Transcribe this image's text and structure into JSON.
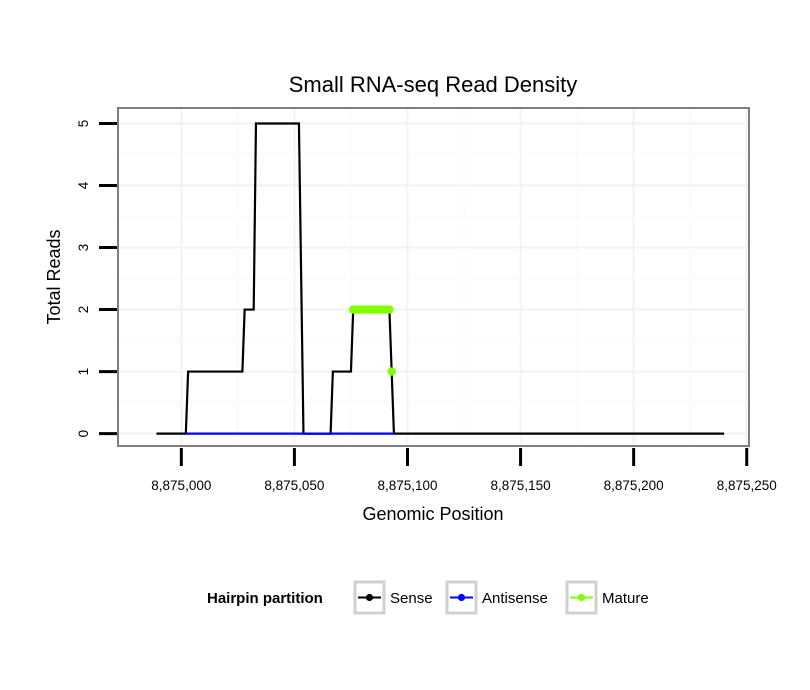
{
  "chart_data": {
    "type": "line",
    "title": "Small RNA-seq Read Density",
    "xlabel": "Genomic Position",
    "ylabel": "Total Reads",
    "xlim": [
      8874972,
      8875251
    ],
    "ylim": [
      -0.2,
      5.25
    ],
    "x_ticks": [
      8875000,
      8875050,
      8875100,
      8875150,
      8875200,
      8875250
    ],
    "x_tick_labels": [
      "8,875,000",
      "8,875,050",
      "8,875,100",
      "8,875,150",
      "8,875,200",
      "8,875,250"
    ],
    "y_ticks": [
      0,
      1,
      2,
      3,
      4,
      5
    ],
    "y_tick_labels": [
      "0",
      "1",
      "2",
      "3",
      "4",
      "5"
    ],
    "grid": true,
    "legend": {
      "title": "Hairpin partition",
      "position": "bottom",
      "entries": [
        "Sense",
        "Antisense",
        "Mature"
      ]
    },
    "series": [
      {
        "name": "Sense",
        "color": "#000000",
        "style": "line",
        "points": [
          [
            8874989,
            0
          ],
          [
            8875002,
            0
          ],
          [
            8875003,
            1
          ],
          [
            8875027,
            1
          ],
          [
            8875028,
            2
          ],
          [
            8875032,
            2
          ],
          [
            8875033,
            5
          ],
          [
            8875052,
            5
          ],
          [
            8875054,
            0
          ],
          [
            8875066,
            0
          ],
          [
            8875067,
            1
          ],
          [
            8875075,
            1
          ],
          [
            8875076,
            2
          ],
          [
            8875092,
            2
          ],
          [
            8875094,
            0
          ],
          [
            8875240,
            0
          ]
        ]
      },
      {
        "name": "Antisense",
        "color": "#0000ff",
        "style": "line",
        "points": [
          [
            8875002,
            0
          ],
          [
            8875094,
            0
          ]
        ]
      },
      {
        "name": "Mature",
        "color": "#7fff00",
        "style": "points",
        "points": [
          [
            8875076,
            2
          ],
          [
            8875077,
            2
          ],
          [
            8875078,
            2
          ],
          [
            8875079,
            2
          ],
          [
            8875080,
            2
          ],
          [
            8875081,
            2
          ],
          [
            8875082,
            2
          ],
          [
            8875083,
            2
          ],
          [
            8875084,
            2
          ],
          [
            8875085,
            2
          ],
          [
            8875086,
            2
          ],
          [
            8875087,
            2
          ],
          [
            8875088,
            2
          ],
          [
            8875089,
            2
          ],
          [
            8875090,
            2
          ],
          [
            8875091,
            2
          ],
          [
            8875092,
            2
          ],
          [
            8875093,
            1
          ]
        ]
      }
    ]
  }
}
